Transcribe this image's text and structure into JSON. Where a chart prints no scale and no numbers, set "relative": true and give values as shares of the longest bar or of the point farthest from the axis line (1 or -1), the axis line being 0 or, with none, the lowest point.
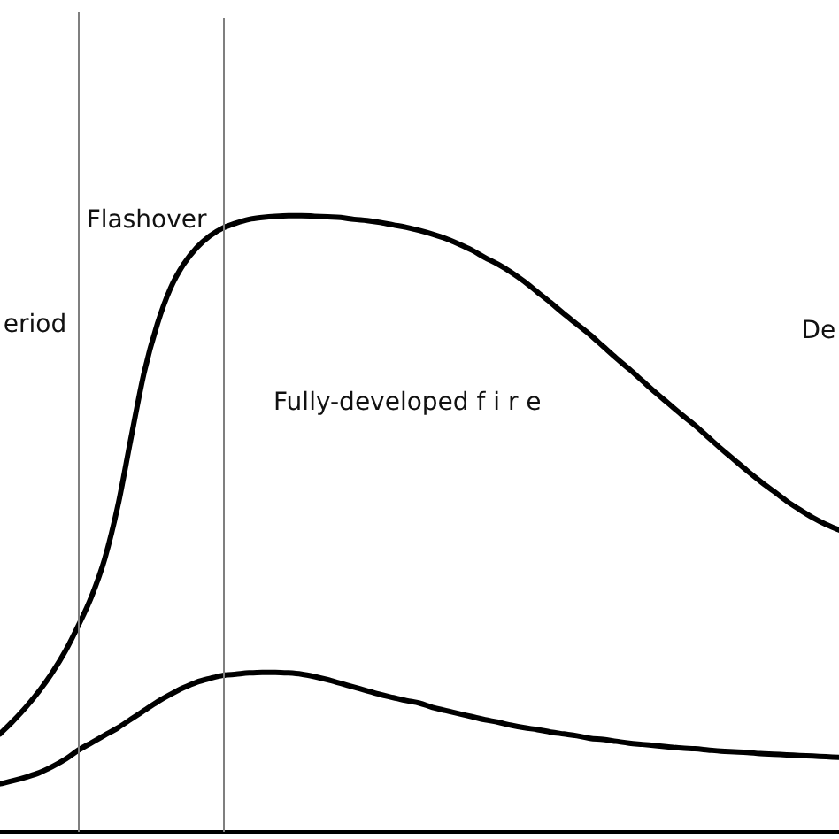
{
  "chart_data": {
    "type": "line",
    "relative": true,
    "tick_labels": false,
    "marker": "none",
    "line_style": "solid",
    "categories": [
      null,
      null,
      null,
      null,
      null,
      null,
      null,
      null,
      null,
      null,
      null,
      null,
      null,
      null,
      null,
      null,
      null,
      null,
      null,
      null,
      null,
      null,
      null,
      null,
      null,
      null,
      null,
      null,
      null,
      null,
      null,
      null,
      null,
      null,
      null,
      null,
      null,
      null,
      null,
      null,
      null,
      null,
      null,
      null,
      null,
      null,
      null,
      null,
      null,
      null,
      null,
      null,
      null,
      null,
      null,
      null,
      null,
      null,
      null,
      null,
      null,
      null,
      null,
      null,
      null
    ],
    "series": [
      {
        "color": "#000000",
        "values": [
          0.159,
          0.18,
          0.203,
          0.229,
          0.259,
          0.294,
          0.336,
          0.383,
          0.444,
          0.53,
          0.64,
          0.746,
          0.824,
          0.882,
          0.921,
          0.948,
          0.967,
          0.98,
          0.988,
          0.994,
          0.997,
          0.999,
          1,
          1,
          0.999,
          0.998,
          0.997,
          0.994,
          0.992,
          0.989,
          0.985,
          0.981,
          0.976,
          0.97,
          0.963,
          0.954,
          0.944,
          0.932,
          0.921,
          0.908,
          0.893,
          0.876,
          0.859,
          0.841,
          0.824,
          0.807,
          0.788,
          0.769,
          0.751,
          0.732,
          0.713,
          0.695,
          0.677,
          0.66,
          0.641,
          0.622,
          0.604,
          0.586,
          0.569,
          0.553,
          0.537,
          0.523,
          0.51,
          0.499,
          0.49
        ]
      },
      {
        "color": "#000000",
        "values": [
          0.078,
          0.083,
          0.089,
          0.096,
          0.106,
          0.118,
          0.133,
          0.145,
          0.157,
          0.169,
          0.183,
          0.197,
          0.211,
          0.223,
          0.234,
          0.243,
          0.249,
          0.254,
          0.256,
          0.258,
          0.259,
          0.259,
          0.258,
          0.256,
          0.252,
          0.247,
          0.241,
          0.235,
          0.229,
          0.223,
          0.218,
          0.213,
          0.209,
          0.202,
          0.197,
          0.192,
          0.187,
          0.182,
          0.178,
          0.173,
          0.169,
          0.166,
          0.162,
          0.159,
          0.156,
          0.152,
          0.15,
          0.147,
          0.144,
          0.142,
          0.14,
          0.138,
          0.136,
          0.135,
          0.133,
          0.131,
          0.13,
          0.129,
          0.127,
          0.126,
          0.125,
          0.124,
          0.123,
          0.122,
          0.121
        ]
      }
    ],
    "annotations": [
      "eriod",
      "Flashover",
      "Fully-developed f i r e",
      "De"
    ]
  }
}
